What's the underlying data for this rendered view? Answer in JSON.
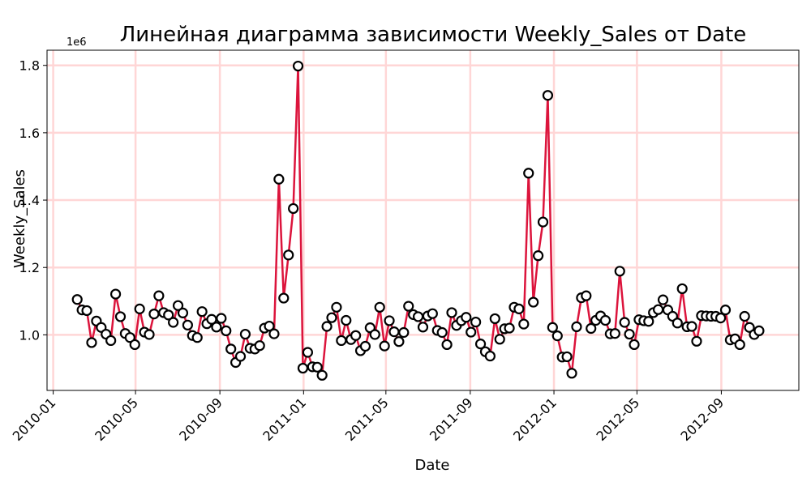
{
  "chart_data": {
    "type": "line",
    "title": "Линейная диаграмма зависимости Weekly_Sales от Date",
    "xlabel": "Date",
    "ylabel": "Weekly_Sales",
    "y_offset_label": "1e6",
    "y_scale": 1000000,
    "xlim": [
      "2009-12-23",
      "2012-12-23"
    ],
    "ylim": [
      0.835,
      1.845
    ],
    "yticks": [
      1.0,
      1.2,
      1.4,
      1.6,
      1.8
    ],
    "ytick_labels": [
      "1.0",
      "1.2",
      "1.4",
      "1.6",
      "1.8"
    ],
    "xticks": [
      "2010-01-01",
      "2010-05-01",
      "2010-09-01",
      "2011-01-01",
      "2011-05-01",
      "2011-09-01",
      "2012-01-01",
      "2012-05-01",
      "2012-09-01"
    ],
    "xtick_labels": [
      "2010-01",
      "2010-05",
      "2010-09",
      "2011-01",
      "2011-05",
      "2011-09",
      "2012-01",
      "2012-05",
      "2012-09"
    ],
    "grid": true,
    "colors": {
      "line": "#dc143c",
      "marker_edge": "#000000",
      "marker_face": "#ffffff",
      "grid": "#ffd6d6"
    },
    "series": [
      {
        "x": [
          "2010-02-05",
          "2010-02-12",
          "2010-02-19",
          "2010-02-26",
          "2010-03-05",
          "2010-03-12",
          "2010-03-19",
          "2010-03-26",
          "2010-04-02",
          "2010-04-09",
          "2010-04-16",
          "2010-04-23",
          "2010-04-30",
          "2010-05-07",
          "2010-05-14",
          "2010-05-21",
          "2010-05-28",
          "2010-06-04",
          "2010-06-11",
          "2010-06-18",
          "2010-06-25",
          "2010-07-02",
          "2010-07-09",
          "2010-07-16",
          "2010-07-23",
          "2010-07-30",
          "2010-08-06",
          "2010-08-13",
          "2010-08-20",
          "2010-08-27",
          "2010-09-03",
          "2010-09-10",
          "2010-09-17",
          "2010-09-24",
          "2010-10-01",
          "2010-10-08",
          "2010-10-15",
          "2010-10-22",
          "2010-10-29",
          "2010-11-05",
          "2010-11-12",
          "2010-11-19",
          "2010-11-26",
          "2010-12-03",
          "2010-12-10",
          "2010-12-17",
          "2010-12-24",
          "2010-12-31",
          "2011-01-07",
          "2011-01-14",
          "2011-01-21",
          "2011-01-28",
          "2011-02-04",
          "2011-02-11",
          "2011-02-18",
          "2011-02-25",
          "2011-03-04",
          "2011-03-11",
          "2011-03-18",
          "2011-03-25",
          "2011-04-01",
          "2011-04-08",
          "2011-04-15",
          "2011-04-22",
          "2011-04-29",
          "2011-05-06",
          "2011-05-13",
          "2011-05-20",
          "2011-05-27",
          "2011-06-03",
          "2011-06-10",
          "2011-06-17",
          "2011-06-24",
          "2011-07-01",
          "2011-07-08",
          "2011-07-15",
          "2011-07-22",
          "2011-07-29",
          "2011-08-05",
          "2011-08-12",
          "2011-08-19",
          "2011-08-26",
          "2011-09-02",
          "2011-09-09",
          "2011-09-16",
          "2011-09-23",
          "2011-09-30",
          "2011-10-07",
          "2011-10-14",
          "2011-10-21",
          "2011-10-28",
          "2011-11-04",
          "2011-11-11",
          "2011-11-18",
          "2011-11-25",
          "2011-12-02",
          "2011-12-09",
          "2011-12-16",
          "2011-12-23",
          "2011-12-30",
          "2012-01-06",
          "2012-01-13",
          "2012-01-20",
          "2012-01-27",
          "2012-02-03",
          "2012-02-10",
          "2012-02-17",
          "2012-02-24",
          "2012-03-02",
          "2012-03-09",
          "2012-03-16",
          "2012-03-23",
          "2012-03-30",
          "2012-04-06",
          "2012-04-13",
          "2012-04-20",
          "2012-04-27",
          "2012-05-04",
          "2012-05-11",
          "2012-05-18",
          "2012-05-25",
          "2012-06-01",
          "2012-06-08",
          "2012-06-15",
          "2012-06-22",
          "2012-06-29",
          "2012-07-06",
          "2012-07-13",
          "2012-07-20",
          "2012-07-27",
          "2012-08-03",
          "2012-08-10",
          "2012-08-17",
          "2012-08-24",
          "2012-08-31",
          "2012-09-07",
          "2012-09-14",
          "2012-09-21",
          "2012-09-28",
          "2012-10-05",
          "2012-10-12",
          "2012-10-19",
          "2012-10-26"
        ],
        "y": [
          1.105,
          1.074,
          1.072,
          0.977,
          1.041,
          1.022,
          1.002,
          0.983,
          1.121,
          1.054,
          1.004,
          0.992,
          0.971,
          1.077,
          1.008,
          1.001,
          1.062,
          1.116,
          1.066,
          1.059,
          1.037,
          1.087,
          1.065,
          1.029,
          0.998,
          0.992,
          1.069,
          1.033,
          1.046,
          1.023,
          1.049,
          1.012,
          0.958,
          0.918,
          0.936,
          1.002,
          0.96,
          0.958,
          0.968,
          1.02,
          1.026,
          1.003,
          1.462,
          1.109,
          1.237,
          1.375,
          1.798,
          0.901,
          0.948,
          0.905,
          0.904,
          0.88,
          1.025,
          1.051,
          1.082,
          0.983,
          1.043,
          0.986,
          0.998,
          0.953,
          0.966,
          1.021,
          1.001,
          1.082,
          0.967,
          1.042,
          1.009,
          0.98,
          1.007,
          1.085,
          1.06,
          1.054,
          1.023,
          1.056,
          1.063,
          1.013,
          1.007,
          0.971,
          1.066,
          1.028,
          1.042,
          1.052,
          1.008,
          1.038,
          0.973,
          0.95,
          0.937,
          1.048,
          0.987,
          1.018,
          1.02,
          1.082,
          1.077,
          1.032,
          1.48,
          1.097,
          1.235,
          1.335,
          1.711,
          1.022,
          0.997,
          0.934,
          0.935,
          0.886,
          1.024,
          1.11,
          1.116,
          1.019,
          1.043,
          1.056,
          1.043,
          1.003,
          1.004,
          1.189,
          1.037,
          1.002,
          0.971,
          1.045,
          1.042,
          1.04,
          1.066,
          1.075,
          1.104,
          1.074,
          1.055,
          1.035,
          1.137,
          1.024,
          1.025,
          0.981,
          1.057,
          1.056,
          1.055,
          1.055,
          1.05,
          1.074,
          0.985,
          0.988,
          0.971,
          1.055,
          1.022,
          1.001,
          1.012
        ]
      }
    ]
  }
}
